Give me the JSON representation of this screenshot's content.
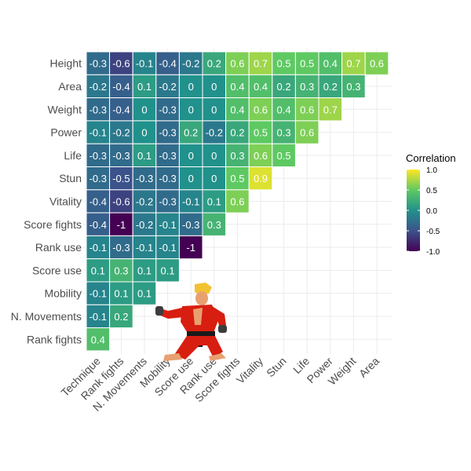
{
  "chart_data": {
    "type": "heatmap",
    "title": "",
    "xlabel": "",
    "ylabel": "",
    "x_categories": [
      "Technique",
      "Rank fights",
      "N. Movements",
      "Mobility",
      "Score use",
      "Rank use",
      "Score fights",
      "Vitality",
      "Stun",
      "Life",
      "Power",
      "Weight",
      "Area"
    ],
    "y_categories": [
      "Height",
      "Area",
      "Weight",
      "Power",
      "Life",
      "Stun",
      "Vitality",
      "Score fights",
      "Rank use",
      "Score use",
      "Mobility",
      "N. Movements",
      "Rank fights"
    ],
    "values": [
      [
        -0.3,
        -0.6,
        -0.1,
        -0.4,
        -0.2,
        0.2,
        0.6,
        0.7,
        0.5,
        0.5,
        0.4,
        0.7,
        0.6
      ],
      [
        -0.2,
        -0.4,
        0.1,
        -0.2,
        0,
        0,
        0.4,
        0.4,
        0.2,
        0.3,
        0.2,
        0.3
      ],
      [
        -0.3,
        -0.4,
        0,
        -0.3,
        0,
        0,
        0.4,
        0.6,
        0.4,
        0.6,
        0.7
      ],
      [
        -0.1,
        -0.2,
        0,
        -0.3,
        0.2,
        -0.2,
        0.2,
        0.5,
        0.3,
        0.6
      ],
      [
        -0.3,
        -0.3,
        0.1,
        -0.3,
        0,
        0,
        0.3,
        0.6,
        0.5
      ],
      [
        -0.3,
        -0.5,
        -0.3,
        -0.3,
        0,
        0,
        0.5,
        0.9
      ],
      [
        -0.4,
        -0.6,
        -0.2,
        -0.3,
        -0.1,
        0.1,
        0.6
      ],
      [
        -0.4,
        -1,
        -0.2,
        -0.1,
        -0.3,
        0.3
      ],
      [
        -0.1,
        -0.3,
        -0.1,
        -0.1,
        -1
      ],
      [
        0.1,
        0.3,
        0.1,
        0.1
      ],
      [
        -0.1,
        0.1,
        0.1
      ],
      [
        -0.1,
        0.2
      ],
      [
        0.4
      ]
    ],
    "color_scale": {
      "min": -1,
      "max": 1,
      "colors": [
        "#440154",
        "#3b528b",
        "#21918c",
        "#5ec962",
        "#fde725"
      ]
    },
    "legend": {
      "title": "Correlation",
      "ticks": [
        1.0,
        0.5,
        0.0,
        -0.5,
        -1.0
      ],
      "tick_labels": [
        "1.0",
        "0.5",
        "0.0",
        "-0.5",
        "-1.0"
      ],
      "placement": "right"
    },
    "grid": true
  },
  "decoration": {
    "character_icon": "street-fighter-fighter-sprite"
  }
}
